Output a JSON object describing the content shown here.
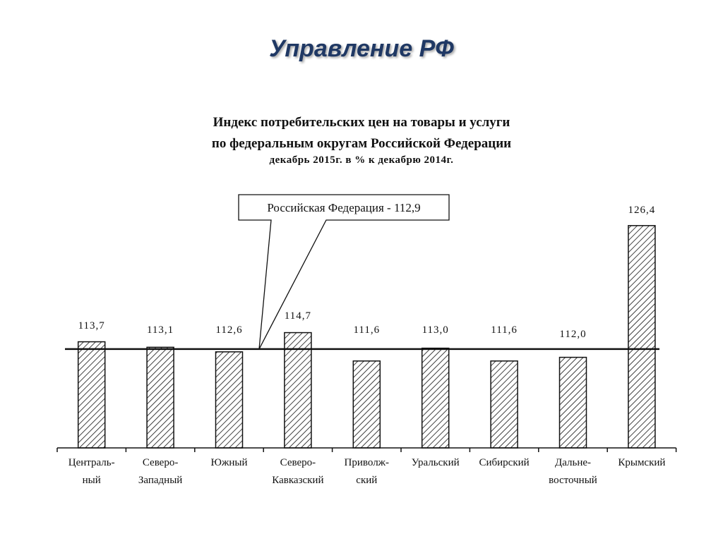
{
  "slide": {
    "title": "Управление РФ"
  },
  "chart_data": {
    "type": "bar",
    "title": "Индекс потребительских цен на товары и услуги",
    "subtitle": "по федеральным округам Российской Федерации",
    "subtitle2": "декабрь 2015г. в % к декабрю 2014г.",
    "xlabel": "",
    "ylabel": "",
    "categories": [
      "Центральный",
      "Северо-Западный",
      "Южный",
      "Северо-Кавказский",
      "Приволжский",
      "Уральский",
      "Сибирский",
      "Дальневосточный",
      "Крымский"
    ],
    "category_label_lines": [
      [
        "Централь-",
        "ный"
      ],
      [
        "Северо-",
        "Западный"
      ],
      [
        "Южный"
      ],
      [
        "Северо-",
        "Кавказский"
      ],
      [
        "Приволж-",
        "ский"
      ],
      [
        "Уральский"
      ],
      [
        "Сибирский"
      ],
      [
        "Дальне-",
        "восточный"
      ],
      [
        "Крымский"
      ]
    ],
    "values": [
      113.7,
      113.1,
      112.6,
      114.7,
      111.6,
      113.0,
      111.6,
      112.0,
      126.4
    ],
    "value_labels": [
      "113,7",
      "113,1",
      "112,6",
      "114,7",
      "111,6",
      "113,0",
      "111,6",
      "112,0",
      "126,4"
    ],
    "reference_line": {
      "value": 112.9,
      "label": "Российская Федерация - 112,9"
    },
    "bar_fill": "diagonal-hatch",
    "grid": false,
    "legend": null
  },
  "colors": {
    "title": "#1f3864",
    "ink": "#111111",
    "background": "#ffffff"
  }
}
